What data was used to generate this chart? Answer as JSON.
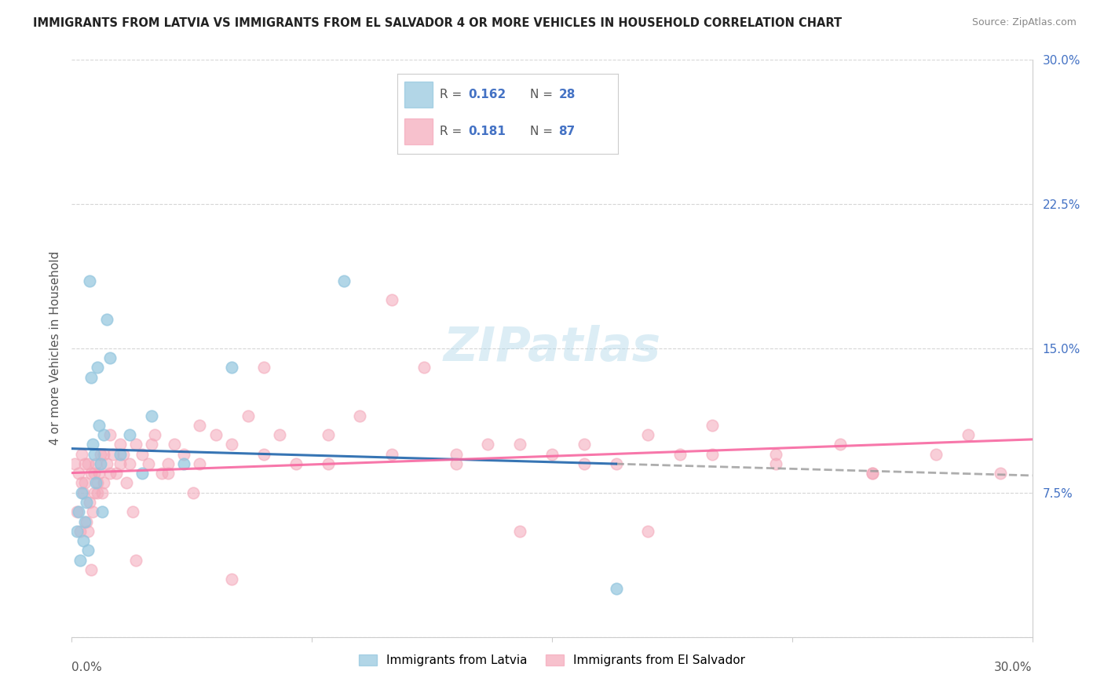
{
  "title": "IMMIGRANTS FROM LATVIA VS IMMIGRANTS FROM EL SALVADOR 4 OR MORE VEHICLES IN HOUSEHOLD CORRELATION CHART",
  "source": "Source: ZipAtlas.com",
  "ylabel": "4 or more Vehicles in Household",
  "ytick_values": [
    0.0,
    7.5,
    15.0,
    22.5,
    30.0
  ],
  "ytick_labels": [
    "",
    "7.5%",
    "15.0%",
    "22.5%",
    "30.0%"
  ],
  "xtick_values": [
    0.0,
    7.5,
    15.0,
    22.5,
    30.0
  ],
  "xlim": [
    0.0,
    30.0
  ],
  "ylim": [
    0.0,
    30.0
  ],
  "color_latvia": "#92c5de",
  "color_salvador": "#f4a7b9",
  "color_latvia_line": "#2166ac",
  "color_salvador_line": "#f768a1",
  "color_latvia_dashed": "#aaaaaa",
  "watermark": "ZIPatlas",
  "legend_r1": "0.162",
  "legend_n1": "28",
  "legend_r2": "0.181",
  "legend_n2": "87",
  "latvia_x": [
    0.15,
    0.2,
    0.25,
    0.3,
    0.35,
    0.4,
    0.45,
    0.5,
    0.55,
    0.6,
    0.65,
    0.7,
    0.75,
    0.8,
    0.85,
    0.9,
    0.95,
    1.0,
    1.1,
    1.2,
    1.5,
    1.8,
    2.2,
    2.5,
    3.5,
    5.0,
    8.5,
    17.0
  ],
  "latvia_y": [
    5.5,
    6.5,
    4.0,
    7.5,
    5.0,
    6.0,
    7.0,
    4.5,
    18.5,
    13.5,
    10.0,
    9.5,
    8.0,
    14.0,
    11.0,
    9.0,
    6.5,
    10.5,
    16.5,
    14.5,
    9.5,
    10.5,
    8.5,
    11.5,
    9.0,
    14.0,
    18.5,
    2.5
  ],
  "salvador_x": [
    0.1,
    0.15,
    0.2,
    0.25,
    0.3,
    0.35,
    0.4,
    0.45,
    0.5,
    0.55,
    0.6,
    0.65,
    0.7,
    0.75,
    0.8,
    0.85,
    0.9,
    0.95,
    1.0,
    1.1,
    1.2,
    1.3,
    1.4,
    1.5,
    1.6,
    1.7,
    1.8,
    1.9,
    2.0,
    2.2,
    2.4,
    2.6,
    2.8,
    3.0,
    3.2,
    3.5,
    3.8,
    4.0,
    4.5,
    5.0,
    5.5,
    6.0,
    6.5,
    7.0,
    8.0,
    9.0,
    10.0,
    11.0,
    12.0,
    13.0,
    14.0,
    15.0,
    16.0,
    17.0,
    18.0,
    19.0,
    20.0,
    22.0,
    24.0,
    25.0,
    27.0,
    28.0,
    29.0,
    0.3,
    0.4,
    0.5,
    0.6,
    0.7,
    0.8,
    1.0,
    1.2,
    1.5,
    2.0,
    2.5,
    3.0,
    4.0,
    5.0,
    6.0,
    8.0,
    10.0,
    12.0,
    14.0,
    16.0,
    18.0,
    20.0,
    22.0,
    25.0
  ],
  "salvador_y": [
    9.0,
    6.5,
    8.5,
    5.5,
    9.5,
    7.5,
    8.0,
    6.0,
    9.0,
    7.0,
    8.5,
    6.5,
    7.5,
    9.0,
    8.0,
    8.5,
    9.5,
    7.5,
    8.0,
    9.0,
    10.5,
    9.5,
    8.5,
    10.0,
    9.5,
    8.0,
    9.0,
    6.5,
    10.0,
    9.5,
    9.0,
    10.5,
    8.5,
    9.0,
    10.0,
    9.5,
    7.5,
    11.0,
    10.5,
    10.0,
    11.5,
    14.0,
    10.5,
    9.0,
    10.5,
    11.5,
    9.5,
    14.0,
    9.5,
    10.0,
    10.0,
    9.5,
    10.0,
    9.0,
    10.5,
    9.5,
    11.0,
    9.5,
    10.0,
    8.5,
    9.5,
    10.5,
    8.5,
    8.0,
    9.0,
    5.5,
    3.5,
    8.5,
    7.5,
    9.5,
    8.5,
    9.0,
    4.0,
    10.0,
    8.5,
    9.0,
    3.0,
    9.5,
    9.0,
    17.5,
    9.0,
    5.5,
    9.0,
    5.5,
    9.5,
    9.0,
    8.5
  ]
}
